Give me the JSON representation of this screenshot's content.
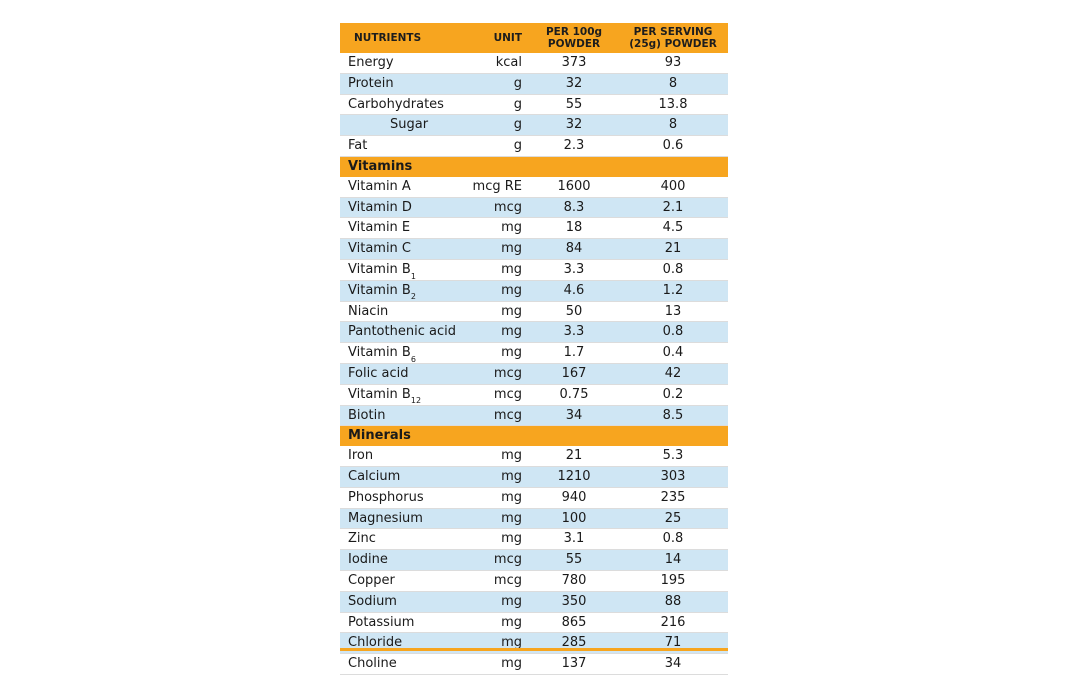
{
  "header": {
    "nutrients": "NUTRIENTS",
    "unit": "UNIT",
    "per100_line1": "PER 100g",
    "per100_line2": "POWDER",
    "serving_line1": "PER SERVING",
    "serving_line2": "(25g) POWDER"
  },
  "rows": [
    {
      "type": "row",
      "name": "Energy",
      "unit": "kcal",
      "per100": "373",
      "serving": "93"
    },
    {
      "type": "row",
      "name": "Protein",
      "unit": "g",
      "per100": "32",
      "serving": "8"
    },
    {
      "type": "row",
      "name": "Carbohydrates",
      "unit": "g",
      "per100": "55",
      "serving": "13.8"
    },
    {
      "type": "row",
      "name": "Sugar",
      "unit": "g",
      "per100": "32",
      "serving": "8",
      "indent": true
    },
    {
      "type": "row",
      "name": "Fat",
      "unit": "g",
      "per100": "2.3",
      "serving": "0.6"
    },
    {
      "type": "section",
      "name": "Vitamins"
    },
    {
      "type": "row",
      "name": "Vitamin A",
      "unit": "mcg RE",
      "per100": "1600",
      "serving": "400"
    },
    {
      "type": "row",
      "name": "Vitamin D",
      "unit": "mcg",
      "per100": "8.3",
      "serving": "2.1"
    },
    {
      "type": "row",
      "name": "Vitamin E",
      "unit": "mg",
      "per100": "18",
      "serving": "4.5"
    },
    {
      "type": "row",
      "name": "Vitamin C",
      "unit": "mg",
      "per100": "84",
      "serving": "21"
    },
    {
      "type": "row",
      "name": "Vitamin B",
      "sub": "1",
      "unit": "mg",
      "per100": "3.3",
      "serving": "0.8"
    },
    {
      "type": "row",
      "name": "Vitamin B",
      "sub": "2",
      "unit": "mg",
      "per100": "4.6",
      "serving": "1.2"
    },
    {
      "type": "row",
      "name": "Niacin",
      "unit": "mg",
      "per100": "50",
      "serving": "13"
    },
    {
      "type": "row",
      "name": "Pantothenic acid",
      "unit": "mg",
      "per100": "3.3",
      "serving": "0.8"
    },
    {
      "type": "row",
      "name": "Vitamin B",
      "sub": "6",
      "unit": "mg",
      "per100": "1.7",
      "serving": "0.4"
    },
    {
      "type": "row",
      "name": "Folic acid",
      "unit": "mcg",
      "per100": "167",
      "serving": "42"
    },
    {
      "type": "row",
      "name": "Vitamin B",
      "sub": "12",
      "unit": "mcg",
      "per100": "0.75",
      "serving": "0.2"
    },
    {
      "type": "row",
      "name": "Biotin",
      "unit": "mcg",
      "per100": "34",
      "serving": "8.5"
    },
    {
      "type": "section",
      "name": "Minerals"
    },
    {
      "type": "row",
      "name": "Iron",
      "unit": "mg",
      "per100": "21",
      "serving": "5.3"
    },
    {
      "type": "row",
      "name": "Calcium",
      "unit": "mg",
      "per100": "1210",
      "serving": "303"
    },
    {
      "type": "row",
      "name": "Phosphorus",
      "unit": "mg",
      "per100": "940",
      "serving": "235"
    },
    {
      "type": "row",
      "name": "Magnesium",
      "unit": "mg",
      "per100": "100",
      "serving": "25"
    },
    {
      "type": "row",
      "name": "Zinc",
      "unit": "mg",
      "per100": "3.1",
      "serving": "0.8"
    },
    {
      "type": "row",
      "name": "Iodine",
      "unit": "mcg",
      "per100": "55",
      "serving": "14"
    },
    {
      "type": "row",
      "name": "Copper",
      "unit": "mcg",
      "per100": "780",
      "serving": "195"
    },
    {
      "type": "row",
      "name": "Sodium",
      "unit": "mg",
      "per100": "350",
      "serving": "88"
    },
    {
      "type": "row",
      "name": "Potassium",
      "unit": "mg",
      "per100": "865",
      "serving": "216"
    },
    {
      "type": "row",
      "name": "Chloride",
      "unit": "mg",
      "per100": "285",
      "serving": "71"
    },
    {
      "type": "row",
      "name": "Choline",
      "unit": "mg",
      "per100": "137",
      "serving": "34"
    }
  ],
  "colors": {
    "header_orange": "#f7a51f",
    "alt_row_blue": "#cfe6f4"
  }
}
